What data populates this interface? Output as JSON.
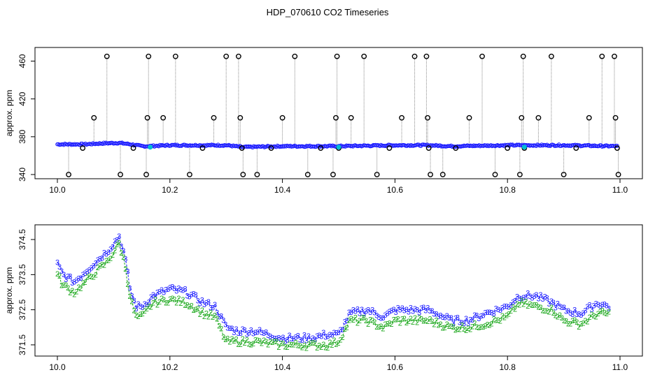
{
  "title": "HDP_070610  CO2 Timeseries",
  "chart_data": [
    {
      "type": "scatter",
      "panel": "top",
      "ylabel": "approx. ppm",
      "xlim": [
        10.0,
        11.0
      ],
      "ylim": [
        340,
        470
      ],
      "xticks": [
        "10.0",
        "10.2",
        "10.4",
        "10.6",
        "10.8",
        "11.0"
      ],
      "yticks": [
        "340",
        "380",
        "420",
        "460"
      ],
      "colors": {
        "markers": "#000000",
        "spikes": "#8a8a8a",
        "series": "#1a1aff",
        "highlight": "#00bcd4"
      },
      "baseline": {
        "x": [
          10.0,
          10.05,
          10.08,
          10.11,
          10.13,
          10.15,
          10.16,
          10.2,
          10.3,
          10.33,
          10.4,
          10.5,
          10.6,
          10.66,
          10.7,
          10.8,
          10.83,
          10.9,
          10.99
        ],
        "y": [
          372,
          372,
          373,
          373.5,
          372,
          370,
          370,
          371,
          371,
          369,
          370,
          370,
          371,
          371,
          370,
          371,
          371,
          371,
          370
        ]
      },
      "outlier_points": {
        "x": [
          10.02,
          10.045,
          10.065,
          10.088,
          10.112,
          10.135,
          10.158,
          10.16,
          10.162,
          10.188,
          10.21,
          10.235,
          10.258,
          10.278,
          10.3,
          10.322,
          10.325,
          10.328,
          10.33,
          10.355,
          10.38,
          10.4,
          10.422,
          10.445,
          10.468,
          10.49,
          10.495,
          10.497,
          10.5,
          10.522,
          10.545,
          10.568,
          10.59,
          10.612,
          10.635,
          10.656,
          10.658,
          10.66,
          10.663,
          10.685,
          10.708,
          10.732,
          10.755,
          10.778,
          10.8,
          10.822,
          10.825,
          10.828,
          10.83,
          10.855,
          10.878,
          10.9,
          10.922,
          10.945,
          10.968,
          10.99,
          10.992,
          10.995,
          10.997
        ],
        "y": [
          340,
          368,
          400,
          465,
          340,
          368,
          340,
          400,
          465,
          400,
          465,
          340,
          368,
          400,
          465,
          465,
          400,
          368,
          340,
          340,
          368,
          400,
          465,
          340,
          368,
          340,
          400,
          465,
          368,
          400,
          465,
          340,
          368,
          400,
          465,
          465,
          400,
          368,
          340,
          340,
          368,
          400,
          465,
          340,
          368,
          340,
          400,
          465,
          368,
          400,
          465,
          340,
          368,
          400,
          465,
          465,
          400,
          368,
          340
        ]
      },
      "highlight_points": {
        "x": [
          10.165,
          10.5,
          10.83
        ],
        "y": [
          369,
          369,
          369
        ]
      }
    },
    {
      "type": "line",
      "panel": "bottom",
      "ylabel": "approx. ppm",
      "xlim": [
        10.0,
        11.0
      ],
      "ylim": [
        371.3,
        374.8
      ],
      "xticks": [
        "10.0",
        "10.2",
        "10.4",
        "10.6",
        "10.8",
        "11.0"
      ],
      "yticks": [
        "371.5",
        "372.5",
        "373.5",
        "374.5"
      ],
      "series": [
        {
          "name": "3",
          "color": "#1a1aff",
          "x": [
            10.0,
            10.01,
            10.02,
            10.03,
            10.05,
            10.07,
            10.09,
            10.11,
            10.12,
            10.13,
            10.14,
            10.15,
            10.17,
            10.2,
            10.23,
            10.26,
            10.28,
            10.3,
            10.32,
            10.35,
            10.4,
            10.45,
            10.48,
            10.5,
            10.52,
            10.55,
            10.58,
            10.6,
            10.63,
            10.66,
            10.7,
            10.73,
            10.76,
            10.8,
            10.82,
            10.85,
            10.88,
            10.9,
            10.93,
            10.96,
            10.98
          ],
          "y": [
            373.8,
            373.5,
            373.4,
            373.3,
            373.6,
            373.9,
            374.2,
            374.6,
            374.0,
            373.0,
            372.6,
            372.6,
            372.9,
            373.1,
            373.0,
            372.7,
            372.6,
            372.0,
            371.9,
            371.9,
            371.7,
            371.7,
            371.8,
            371.8,
            372.4,
            372.5,
            372.3,
            372.5,
            372.5,
            372.5,
            372.2,
            372.2,
            372.4,
            372.6,
            372.9,
            372.9,
            372.7,
            372.5,
            372.4,
            372.7,
            372.6
          ]
        },
        {
          "name": "2",
          "color": "#22aa22",
          "x": [
            10.0,
            10.01,
            10.02,
            10.03,
            10.05,
            10.07,
            10.09,
            10.11,
            10.12,
            10.13,
            10.14,
            10.15,
            10.17,
            10.2,
            10.23,
            10.26,
            10.28,
            10.3,
            10.32,
            10.35,
            10.4,
            10.45,
            10.48,
            10.5,
            10.52,
            10.55,
            10.58,
            10.6,
            10.63,
            10.66,
            10.7,
            10.73,
            10.76,
            10.8,
            10.82,
            10.85,
            10.88,
            10.9,
            10.93,
            10.96,
            10.98
          ],
          "y": [
            373.5,
            373.2,
            373.1,
            373.0,
            373.3,
            373.6,
            373.9,
            374.4,
            373.8,
            372.8,
            372.3,
            372.3,
            372.7,
            372.8,
            372.7,
            372.4,
            372.3,
            371.6,
            371.6,
            371.6,
            371.5,
            371.5,
            371.5,
            371.6,
            372.2,
            372.2,
            372.0,
            372.2,
            372.2,
            372.2,
            372.0,
            372.0,
            372.1,
            372.3,
            372.7,
            372.6,
            372.5,
            372.2,
            372.1,
            372.4,
            372.4
          ]
        }
      ]
    }
  ]
}
